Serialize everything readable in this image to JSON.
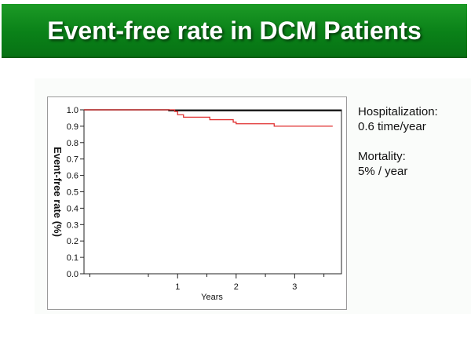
{
  "header": {
    "title": "Event-free rate in DCM Patients"
  },
  "stats": {
    "hospitalization_label": "Hospitalization:",
    "hospitalization_value": "0.6 time/year",
    "mortality_label": "Mortality:",
    "mortality_value": "5% / year"
  },
  "colors": {
    "title_bar": "#0a8118",
    "series_event_free": "#e03030",
    "series_top": "#111111"
  },
  "chart_data": {
    "type": "line",
    "title": "",
    "xlabel": "Years",
    "ylabel": "Event-free rate (%)",
    "xlim": [
      -0.6,
      3.8
    ],
    "ylim": [
      0.0,
      1.0
    ],
    "x_ticks": [
      1,
      2,
      3
    ],
    "x_tick_labels": [
      "1",
      "2",
      "3"
    ],
    "y_ticks": [
      0.0,
      0.1,
      0.2,
      0.3,
      0.4,
      0.5,
      0.6,
      0.7,
      0.8,
      0.9,
      1.0
    ],
    "y_tick_labels": [
      "0.0",
      "0.1",
      "0.2",
      "0.3",
      "0.4",
      "0.5",
      "0.6",
      "0.7",
      "0.8",
      "0.9",
      "1.0"
    ],
    "grid": false,
    "series": [
      {
        "color": "#111111",
        "step": true,
        "x": [
          -0.6,
          0.85,
          3.8
        ],
        "y": [
          1.0,
          0.995,
          0.995
        ]
      },
      {
        "color": "#e03030",
        "step": true,
        "x": [
          -0.6,
          0.95,
          1.0,
          1.1,
          1.55,
          1.95,
          2.0,
          2.65,
          3.65
        ],
        "y": [
          1.0,
          0.99,
          0.97,
          0.955,
          0.94,
          0.925,
          0.915,
          0.9,
          0.9
        ]
      }
    ]
  }
}
